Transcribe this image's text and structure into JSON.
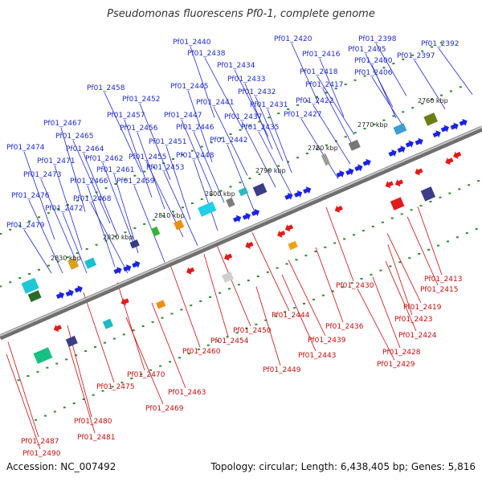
{
  "title": "Pseudomonas fluorescens Pf0-1, complete genome",
  "footer": {
    "accession": "Accession: NC_007492",
    "stats": "Topology: circular; Length: 6,438,405 bp; Genes: 5,816"
  },
  "colors": {
    "forward": "#1a22e6",
    "reverse": "#e21a1a",
    "label_forward": "#1f2ad0",
    "label_reverse": "#c80e0e",
    "backbone": "#8a8a8a",
    "dots": "#2b8a2b"
  },
  "kbp_marks": [
    "2760 kbp",
    "2770 kbp",
    "2780 kbp",
    "2790 kbp",
    "2800 kbp",
    "2810 kbp",
    "2820 kbp",
    "2830 kbp"
  ],
  "forward_labels": [
    "Pf01_2440",
    "Pf01_2420",
    "Pf01_2398",
    "Pf01_2392",
    "Pf01_2438",
    "Pf01_2416",
    "Pf01_2405",
    "Pf01_2397",
    "Pf01_2434",
    "Pf01_2418",
    "Pf01_2400",
    "Pf01_2433",
    "Pf01_2417",
    "Pf01_2406",
    "Pf01_2458",
    "Pf01_2445",
    "Pf01_2432",
    "Pf01_2452",
    "Pf01_2441",
    "Pf01_2422",
    "Pf01_2431",
    "Pf01_2457",
    "Pf01_2447",
    "Pf01_2437",
    "Pf01_2427",
    "Pf01_2467",
    "Pf01_2456",
    "Pf01_2446",
    "Pf01_2435",
    "Pf01_2465",
    "Pf01_2451",
    "Pf01_2442",
    "Pf01_2474",
    "Pf01_2464",
    "Pf01_2455",
    "Pf01_2448",
    "Pf01_2471",
    "Pf01_2462",
    "Pf01_2453",
    "Pf01_2473",
    "Pf01_2461",
    "Pf01_2466",
    "Pf01_2459",
    "Pf01_2476",
    "Pf01_2468",
    "Pf01_2472",
    "Pf01_2479"
  ],
  "reverse_labels": [
    "Pf01_2413",
    "Pf01_2430",
    "Pf01_2415",
    "Pf01_2419",
    "Pf01_2444",
    "Pf01_2423",
    "Pf01_2436",
    "Pf01_2424",
    "Pf01_2450",
    "Pf01_2439",
    "Pf01_2454",
    "Pf01_2428",
    "Pf01_2460",
    "Pf01_2443",
    "Pf01_2429",
    "Pf01_2449",
    "Pf01_2470",
    "Pf01_2475",
    "Pf01_2463",
    "Pf01_2469",
    "Pf01_2480",
    "Pf01_2481",
    "Pf01_2487",
    "Pf01_2490"
  ]
}
